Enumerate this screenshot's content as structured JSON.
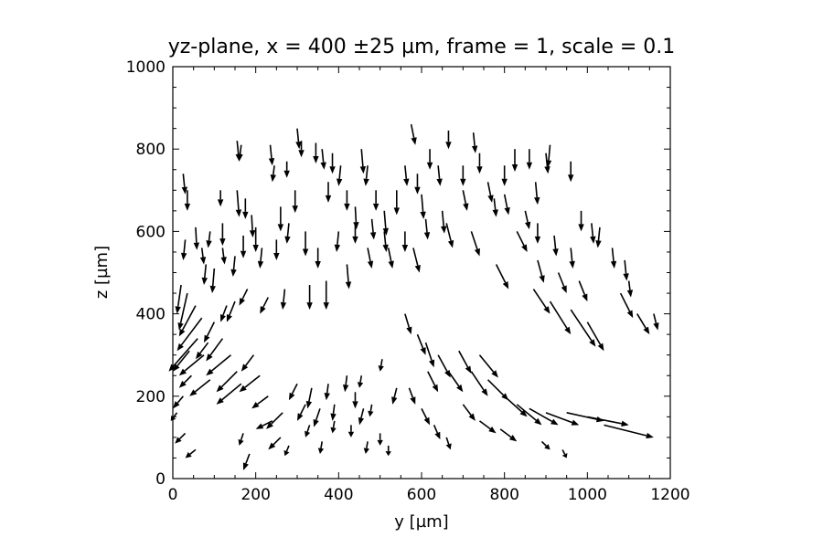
{
  "chart_data": {
    "type": "quiver",
    "title": "yz-plane, x = 400 ±25 µm, frame = 1, scale = 0.1",
    "xlabel": "y [µm]",
    "ylabel": "z [µm]",
    "xlim": [
      0,
      1200
    ],
    "ylim": [
      0,
      1000
    ],
    "xticks": [
      0,
      200,
      400,
      600,
      800,
      1000,
      1200
    ],
    "yticks": [
      0,
      200,
      400,
      600,
      800,
      1000
    ],
    "x_minor_step": 50,
    "y_minor_step": 50,
    "arrow_color": "#000000",
    "grid": false,
    "vectors": [
      [
        25,
        740,
        5,
        -50
      ],
      [
        35,
        700,
        0,
        -50
      ],
      [
        55,
        610,
        3,
        -55
      ],
      [
        30,
        580,
        -5,
        -50
      ],
      [
        70,
        560,
        5,
        -40
      ],
      [
        80,
        520,
        -5,
        -50
      ],
      [
        100,
        510,
        -5,
        -60
      ],
      [
        115,
        700,
        0,
        -40
      ],
      [
        120,
        620,
        0,
        -55
      ],
      [
        155,
        820,
        5,
        -50
      ],
      [
        165,
        810,
        -5,
        -40
      ],
      [
        155,
        700,
        5,
        -65
      ],
      [
        175,
        680,
        0,
        -50
      ],
      [
        190,
        640,
        3,
        -55
      ],
      [
        200,
        610,
        0,
        -60
      ],
      [
        235,
        810,
        5,
        -50
      ],
      [
        245,
        760,
        -5,
        -40
      ],
      [
        260,
        660,
        0,
        -60
      ],
      [
        275,
        770,
        0,
        -40
      ],
      [
        295,
        700,
        0,
        -55
      ],
      [
        300,
        850,
        5,
        -50
      ],
      [
        310,
        820,
        0,
        -40
      ],
      [
        345,
        815,
        0,
        -50
      ],
      [
        360,
        800,
        5,
        -50
      ],
      [
        375,
        720,
        0,
        -50
      ],
      [
        385,
        790,
        0,
        -50
      ],
      [
        405,
        760,
        -5,
        -50
      ],
      [
        420,
        700,
        0,
        -50
      ],
      [
        440,
        660,
        3,
        -55
      ],
      [
        455,
        800,
        5,
        -60
      ],
      [
        470,
        760,
        -5,
        -50
      ],
      [
        490,
        700,
        0,
        -50
      ],
      [
        510,
        650,
        5,
        -60
      ],
      [
        540,
        700,
        0,
        -60
      ],
      [
        560,
        760,
        5,
        -50
      ],
      [
        575,
        860,
        10,
        -50
      ],
      [
        590,
        740,
        0,
        -50
      ],
      [
        600,
        690,
        5,
        -60
      ],
      [
        620,
        800,
        0,
        -50
      ],
      [
        640,
        760,
        5,
        -50
      ],
      [
        665,
        845,
        0,
        -45
      ],
      [
        700,
        760,
        0,
        -50
      ],
      [
        725,
        840,
        5,
        -50
      ],
      [
        740,
        790,
        0,
        -50
      ],
      [
        775,
        680,
        5,
        -45
      ],
      [
        800,
        760,
        0,
        -50
      ],
      [
        825,
        800,
        0,
        -55
      ],
      [
        860,
        800,
        0,
        -50
      ],
      [
        875,
        720,
        5,
        -55
      ],
      [
        900,
        790,
        5,
        -50
      ],
      [
        910,
        810,
        -5,
        -55
      ],
      [
        960,
        770,
        0,
        -50
      ],
      [
        985,
        650,
        0,
        -50
      ],
      [
        1010,
        620,
        5,
        -50
      ],
      [
        1030,
        610,
        -5,
        -50
      ],
      [
        20,
        470,
        -10,
        -70
      ],
      [
        35,
        450,
        -20,
        -90
      ],
      [
        55,
        420,
        -40,
        -75
      ],
      [
        70,
        390,
        -60,
        -80
      ],
      [
        60,
        340,
        -70,
        -80
      ],
      [
        40,
        310,
        -40,
        -50
      ],
      [
        75,
        300,
        -60,
        -50
      ],
      [
        120,
        340,
        -40,
        -55
      ],
      [
        90,
        240,
        -50,
        -40
      ],
      [
        140,
        300,
        -60,
        -50
      ],
      [
        155,
        260,
        -50,
        -50
      ],
      [
        165,
        230,
        -60,
        -50
      ],
      [
        195,
        300,
        -30,
        -40
      ],
      [
        210,
        250,
        -50,
        -40
      ],
      [
        230,
        200,
        -40,
        -30
      ],
      [
        240,
        140,
        -40,
        -20
      ],
      [
        265,
        160,
        -40,
        -40
      ],
      [
        260,
        100,
        -30,
        -30
      ],
      [
        300,
        230,
        -20,
        -40
      ],
      [
        320,
        180,
        -20,
        -40
      ],
      [
        335,
        220,
        -10,
        -50
      ],
      [
        355,
        170,
        -15,
        -45
      ],
      [
        375,
        230,
        -5,
        -40
      ],
      [
        390,
        180,
        -5,
        -40
      ],
      [
        420,
        250,
        -5,
        -40
      ],
      [
        440,
        210,
        0,
        -40
      ],
      [
        455,
        250,
        -5,
        -30
      ],
      [
        460,
        170,
        -10,
        -40
      ],
      [
        480,
        180,
        -5,
        -30
      ],
      [
        500,
        110,
        0,
        -30
      ],
      [
        505,
        290,
        -5,
        -30
      ],
      [
        540,
        220,
        -10,
        -40
      ],
      [
        560,
        400,
        15,
        -50
      ],
      [
        590,
        350,
        20,
        -50
      ],
      [
        610,
        330,
        20,
        -60
      ],
      [
        615,
        260,
        25,
        -50
      ],
      [
        640,
        300,
        30,
        -55
      ],
      [
        665,
        260,
        35,
        -50
      ],
      [
        690,
        310,
        30,
        -55
      ],
      [
        720,
        260,
        40,
        -60
      ],
      [
        740,
        300,
        45,
        -55
      ],
      [
        760,
        240,
        50,
        -50
      ],
      [
        800,
        200,
        55,
        -50
      ],
      [
        830,
        180,
        60,
        -50
      ],
      [
        860,
        170,
        70,
        -40
      ],
      [
        900,
        160,
        80,
        -30
      ],
      [
        950,
        160,
        90,
        -20
      ],
      [
        1000,
        150,
        100,
        -20
      ],
      [
        1040,
        130,
        120,
        -30
      ],
      [
        870,
        460,
        40,
        -60
      ],
      [
        910,
        430,
        50,
        -80
      ],
      [
        960,
        410,
        60,
        -90
      ],
      [
        1000,
        380,
        40,
        -70
      ],
      [
        1080,
        450,
        30,
        -60
      ],
      [
        1120,
        400,
        30,
        -50
      ],
      [
        1160,
        400,
        10,
        -40
      ],
      [
        980,
        480,
        20,
        -50
      ],
      [
        930,
        500,
        20,
        -50
      ],
      [
        880,
        530,
        15,
        -55
      ],
      [
        830,
        600,
        25,
        -50
      ],
      [
        780,
        520,
        30,
        -60
      ],
      [
        720,
        600,
        20,
        -60
      ],
      [
        660,
        620,
        15,
        -60
      ],
      [
        580,
        560,
        15,
        -60
      ],
      [
        520,
        560,
        10,
        -50
      ],
      [
        470,
        560,
        10,
        -50
      ],
      [
        420,
        520,
        5,
        -60
      ],
      [
        370,
        480,
        0,
        -70
      ],
      [
        330,
        470,
        0,
        -60
      ],
      [
        270,
        460,
        -5,
        -50
      ],
      [
        230,
        440,
        -20,
        -40
      ],
      [
        180,
        460,
        -20,
        -40
      ],
      [
        150,
        430,
        -20,
        -50
      ],
      [
        130,
        420,
        -15,
        -40
      ],
      [
        100,
        380,
        -25,
        -50
      ],
      [
        85,
        330,
        -30,
        -40
      ],
      [
        45,
        250,
        -30,
        -30
      ],
      [
        25,
        200,
        -25,
        -30
      ],
      [
        10,
        160,
        -15,
        -20
      ],
      [
        30,
        110,
        -25,
        -25
      ],
      [
        55,
        70,
        -25,
        -20
      ],
      [
        170,
        110,
        -10,
        -30
      ],
      [
        185,
        60,
        -15,
        -40
      ],
      [
        280,
        80,
        -10,
        -25
      ],
      [
        330,
        130,
        -10,
        -30
      ],
      [
        360,
        90,
        -5,
        -30
      ],
      [
        390,
        140,
        -5,
        -30
      ],
      [
        430,
        130,
        0,
        -30
      ],
      [
        470,
        90,
        -5,
        -30
      ],
      [
        520,
        80,
        0,
        -25
      ],
      [
        570,
        220,
        15,
        -40
      ],
      [
        600,
        170,
        20,
        -40
      ],
      [
        630,
        130,
        15,
        -35
      ],
      [
        660,
        100,
        10,
        -30
      ],
      [
        700,
        180,
        30,
        -40
      ],
      [
        740,
        140,
        40,
        -30
      ],
      [
        790,
        120,
        40,
        -30
      ],
      [
        890,
        90,
        20,
        -20
      ],
      [
        940,
        70,
        10,
        -20
      ],
      [
        1060,
        560,
        5,
        -50
      ],
      [
        1090,
        530,
        5,
        -50
      ],
      [
        1100,
        480,
        5,
        -40
      ],
      [
        960,
        560,
        5,
        -50
      ],
      [
        920,
        590,
        5,
        -50
      ],
      [
        880,
        620,
        0,
        -50
      ],
      [
        850,
        650,
        10,
        -45
      ],
      [
        800,
        690,
        10,
        -50
      ],
      [
        760,
        720,
        10,
        -50
      ],
      [
        700,
        700,
        10,
        -50
      ],
      [
        650,
        650,
        5,
        -55
      ],
      [
        610,
        630,
        5,
        -50
      ],
      [
        560,
        600,
        0,
        -50
      ],
      [
        510,
        600,
        5,
        -50
      ],
      [
        480,
        630,
        5,
        -50
      ],
      [
        440,
        620,
        0,
        -50
      ],
      [
        400,
        600,
        -5,
        -50
      ],
      [
        350,
        560,
        0,
        -50
      ],
      [
        320,
        600,
        0,
        -60
      ],
      [
        280,
        620,
        -5,
        -50
      ],
      [
        250,
        580,
        0,
        -50
      ],
      [
        215,
        560,
        -5,
        -50
      ],
      [
        170,
        590,
        0,
        -55
      ],
      [
        150,
        540,
        -5,
        -50
      ],
      [
        120,
        560,
        5,
        -40
      ],
      [
        90,
        600,
        -5,
        -40
      ]
    ]
  }
}
